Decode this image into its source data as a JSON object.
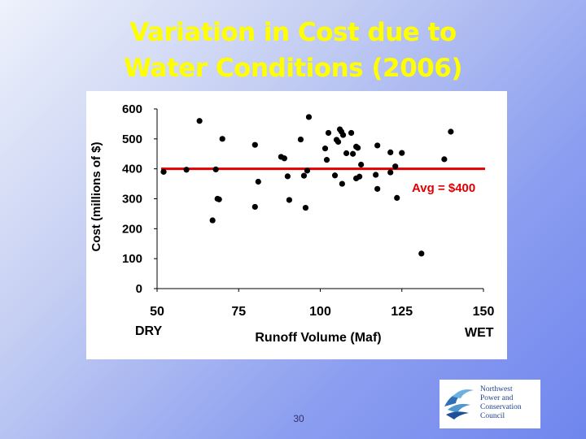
{
  "slide": {
    "title_line1": "Variation in Cost due to",
    "title_line2": "Water Conditions (2006)",
    "page_number": "30"
  },
  "logo": {
    "lines": [
      "Northwest",
      "Power and",
      "Conservation",
      "Council"
    ],
    "icon": "fish-waves-logo-icon"
  },
  "colors": {
    "title": "#ffff00",
    "average_line": "#e00000",
    "points": "#000000",
    "avg_label": "#e00000"
  },
  "chart_data": {
    "type": "scatter",
    "title": "",
    "xlabel": "Runoff Volume (Maf)",
    "ylabel": "Cost (millions of $)",
    "x_range": [
      50,
      150
    ],
    "ylim": [
      0,
      600
    ],
    "xticks": [
      "50",
      "75",
      "100",
      "125",
      "150"
    ],
    "yticks": [
      "0",
      "100",
      "200",
      "300",
      "400",
      "500",
      "600"
    ],
    "x_extremes": {
      "left": "DRY",
      "right": "WET"
    },
    "grid": false,
    "average": {
      "value": 400,
      "label": "Avg = $400"
    },
    "points": [
      {
        "x": 52,
        "y": 390
      },
      {
        "x": 59,
        "y": 397
      },
      {
        "x": 63,
        "y": 560
      },
      {
        "x": 67,
        "y": 228
      },
      {
        "x": 68,
        "y": 398
      },
      {
        "x": 68.5,
        "y": 300
      },
      {
        "x": 69,
        "y": 298
      },
      {
        "x": 70,
        "y": 500
      },
      {
        "x": 80,
        "y": 480
      },
      {
        "x": 80,
        "y": 273
      },
      {
        "x": 81,
        "y": 357
      },
      {
        "x": 88,
        "y": 440
      },
      {
        "x": 89,
        "y": 435
      },
      {
        "x": 90,
        "y": 375
      },
      {
        "x": 90.5,
        "y": 296
      },
      {
        "x": 94,
        "y": 498
      },
      {
        "x": 95,
        "y": 377
      },
      {
        "x": 95.5,
        "y": 270
      },
      {
        "x": 96,
        "y": 394
      },
      {
        "x": 96.5,
        "y": 573
      },
      {
        "x": 101.5,
        "y": 468
      },
      {
        "x": 102,
        "y": 430
      },
      {
        "x": 102.5,
        "y": 520
      },
      {
        "x": 104.5,
        "y": 378
      },
      {
        "x": 105,
        "y": 497
      },
      {
        "x": 105.5,
        "y": 490
      },
      {
        "x": 106,
        "y": 532
      },
      {
        "x": 106.5,
        "y": 524
      },
      {
        "x": 106.7,
        "y": 350
      },
      {
        "x": 107,
        "y": 513
      },
      {
        "x": 108,
        "y": 452
      },
      {
        "x": 109.5,
        "y": 520
      },
      {
        "x": 110,
        "y": 450
      },
      {
        "x": 111,
        "y": 474
      },
      {
        "x": 111.5,
        "y": 470
      },
      {
        "x": 111,
        "y": 368
      },
      {
        "x": 112,
        "y": 374
      },
      {
        "x": 112.5,
        "y": 414
      },
      {
        "x": 117,
        "y": 380
      },
      {
        "x": 117.5,
        "y": 333
      },
      {
        "x": 117.5,
        "y": 478
      },
      {
        "x": 121.5,
        "y": 455
      },
      {
        "x": 121.5,
        "y": 388
      },
      {
        "x": 123,
        "y": 408
      },
      {
        "x": 123.5,
        "y": 303
      },
      {
        "x": 125,
        "y": 453
      },
      {
        "x": 131,
        "y": 117
      },
      {
        "x": 138,
        "y": 432
      },
      {
        "x": 140,
        "y": 524
      }
    ]
  }
}
